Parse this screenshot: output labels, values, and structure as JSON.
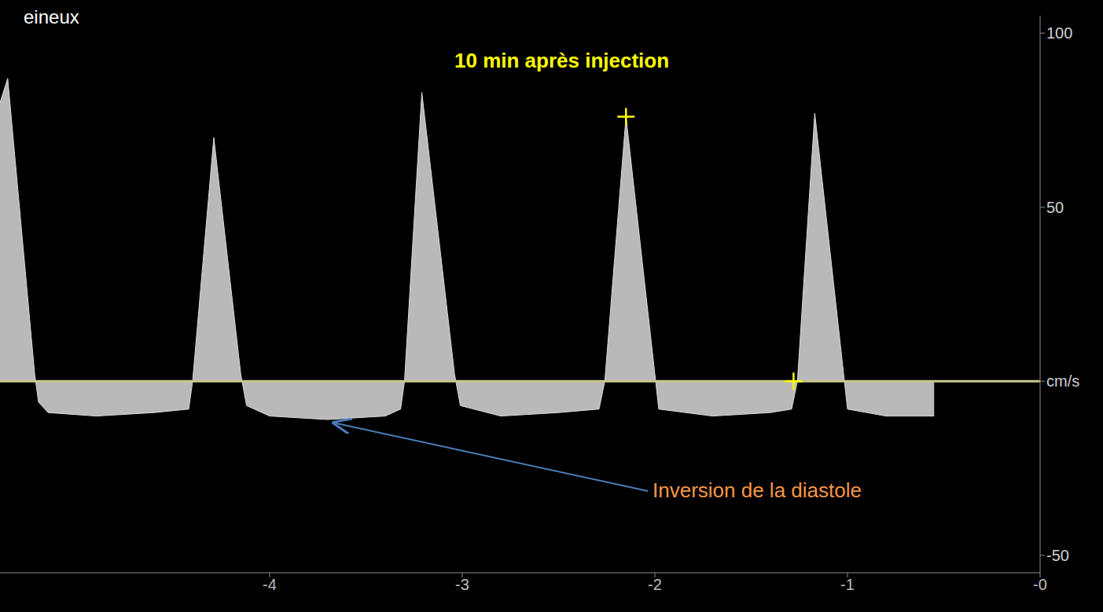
{
  "chart_data": {
    "type": "area",
    "title": "10 min après injection",
    "y_label": "cm/s",
    "x": [
      -5.4,
      -5.36,
      -5.22,
      -5.2,
      -5.15,
      -4.9,
      -4.6,
      -4.42,
      -4.4,
      -4.29,
      -4.15,
      -4.12,
      -4.0,
      -3.7,
      -3.4,
      -3.32,
      -3.3,
      -3.21,
      -3.04,
      -3.01,
      -2.8,
      -2.5,
      -2.29,
      -2.26,
      -2.15,
      -2.0,
      -1.98,
      -1.7,
      -1.4,
      -1.29,
      -1.26,
      -1.17,
      -1.02,
      -1.0,
      -0.8,
      -0.55
    ],
    "values": [
      80,
      87,
      2,
      -6,
      -9,
      -10,
      -9,
      -8,
      0,
      70,
      2,
      -7,
      -10,
      -11,
      -10,
      -8,
      0,
      83,
      2,
      -7,
      -10,
      -9,
      -8,
      0,
      76,
      2,
      -8,
      -10,
      -9,
      -8,
      0,
      77,
      2,
      -8,
      -10,
      -10
    ],
    "color": "#d9d9d9",
    "xlim": [
      -5.4,
      0
    ],
    "xticks": [
      -4,
      -3,
      -2,
      -1,
      {
        "value": 0,
        "label": "-0"
      }
    ],
    "ylim": [
      -55,
      105
    ],
    "yticks": [
      100,
      50,
      {
        "value": 0,
        "label": "cm/s"
      },
      -50
    ],
    "grid": false,
    "calipers": {
      "x": [
        -2.15,
        -1.28
      ],
      "y": [
        76,
        0
      ],
      "color": "#ffff00",
      "marker": "plus"
    },
    "annotations": [
      {
        "text": "Inversion de la diastole",
        "x": -3.66,
        "y": -12
      },
      {
        "text": "eineux"
      }
    ]
  }
}
